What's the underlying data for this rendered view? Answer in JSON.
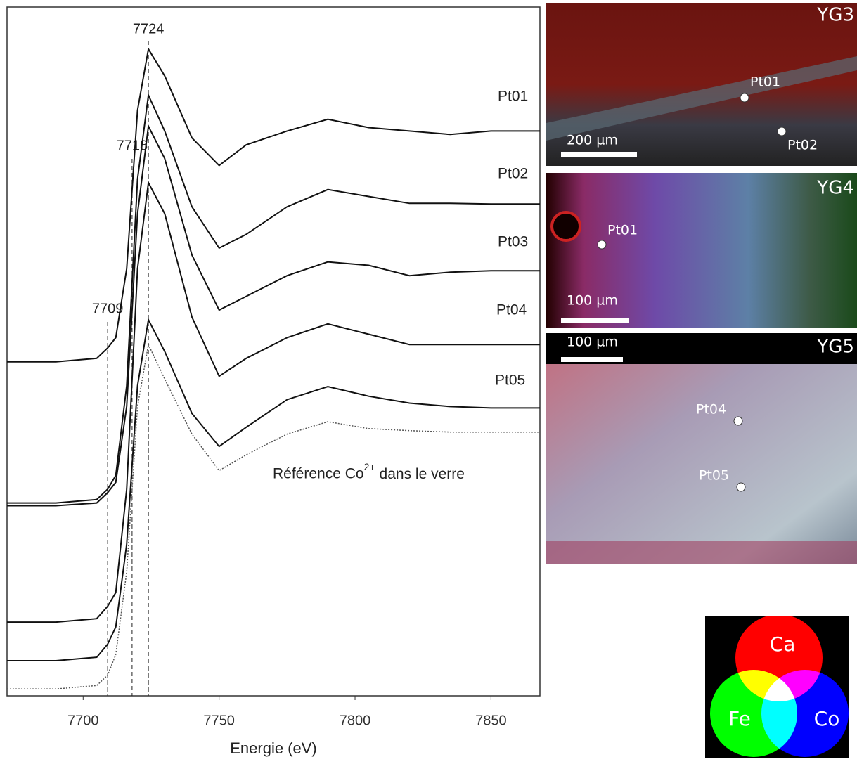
{
  "chart_data": {
    "type": "line",
    "x_label": "Energie (eV)",
    "xlim": [
      7672,
      7868
    ],
    "xticks": [
      7700,
      7750,
      7800,
      7850
    ],
    "ylim": [
      0,
      100
    ],
    "x": [
      7672,
      7690,
      7705,
      7709,
      7712,
      7716,
      7720,
      7724,
      7730,
      7740,
      7750,
      7760,
      7775,
      7790,
      7805,
      7820,
      7835,
      7850,
      7868
    ],
    "series": [
      {
        "name": "Pt01",
        "color": "#111111",
        "style": "solid",
        "values": [
          48.5,
          48.5,
          49,
          50.5,
          52,
          62,
          85,
          93.9,
          90,
          81,
          77,
          80,
          82,
          83.7,
          82.5,
          82,
          81.5,
          82,
          82
        ]
      },
      {
        "name": "Pt02",
        "color": "#111111",
        "style": "solid",
        "values": [
          28,
          28,
          28.5,
          30,
          32,
          45,
          75,
          87.2,
          82,
          71,
          65,
          67,
          71,
          73.5,
          72.5,
          71.5,
          71.5,
          71.4,
          71.4
        ]
      },
      {
        "name": "Pt03",
        "color": "#111111",
        "style": "solid",
        "values": [
          27.6,
          27.6,
          28,
          29.5,
          31,
          42,
          70,
          82.7,
          78,
          64,
          56,
          58,
          61,
          63,
          62.5,
          61,
          61.5,
          61.7,
          61.7
        ]
      },
      {
        "name": "Pt04",
        "color": "#111111",
        "style": "solid",
        "values": [
          10.7,
          10.7,
          11.2,
          13,
          15,
          30,
          62,
          74.5,
          70,
          55,
          46.4,
          49,
          52,
          54,
          52.5,
          51,
          51,
          51,
          51
        ]
      },
      {
        "name": "Pt05",
        "color": "#111111",
        "style": "solid",
        "values": [
          5.1,
          5.1,
          5.6,
          7.5,
          10,
          22,
          45,
          54.6,
          50,
          41,
          36.2,
          39,
          43,
          44.9,
          43.5,
          42.5,
          42,
          41.8,
          41.8
        ]
      },
      {
        "name": "Référence Co",
        "name_sup": "2+",
        "name_tail": "dans le verre",
        "color": "#555555",
        "style": "dotted",
        "values": [
          1,
          1,
          1.5,
          3,
          6,
          18,
          42,
          51,
          46,
          38,
          32.7,
          35,
          38,
          39.8,
          38.8,
          38.5,
          38.3,
          38.3,
          38.3
        ]
      }
    ],
    "annotations": [
      {
        "label": "7724",
        "x": 7724
      },
      {
        "label": "7718",
        "x": 7718
      },
      {
        "label": "7709",
        "x": 7709
      }
    ]
  },
  "images": [
    {
      "title": "YG3",
      "scale": "200 µm",
      "points": [
        "Pt01",
        "Pt02"
      ]
    },
    {
      "title": "YG4",
      "scale": "100 µm",
      "points": [
        "Pt01"
      ]
    },
    {
      "title": "YG5",
      "scale": "100 µm",
      "points": [
        "Pt04",
        "Pt05"
      ]
    }
  ],
  "elements": [
    "Ca",
    "Fe",
    "Co"
  ]
}
